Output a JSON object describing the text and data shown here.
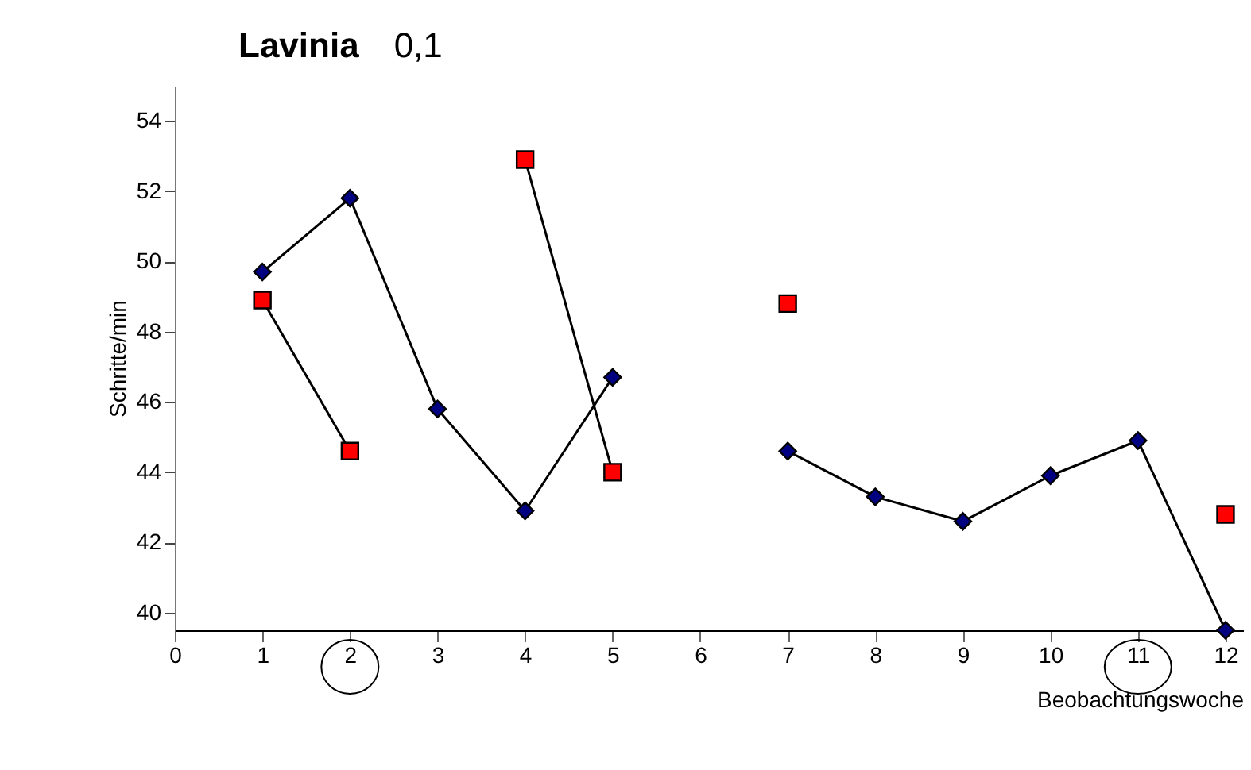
{
  "chart_data": {
    "type": "line",
    "title": "Lavinia",
    "subtitle": "0,1",
    "xlabel": "Beobachtungswoche",
    "ylabel": "Schritte/min",
    "x": [
      1,
      2,
      3,
      4,
      5,
      6,
      7,
      8,
      9,
      10,
      11,
      12
    ],
    "series": [
      {
        "color": "#000080",
        "marker": "diamond",
        "values": [
          49.7,
          51.8,
          45.8,
          42.9,
          46.7,
          null,
          44.6,
          43.3,
          42.6,
          43.9,
          44.9,
          39.5
        ]
      },
      {
        "color": "#ff0000",
        "marker": "square",
        "values": [
          48.9,
          44.6,
          null,
          52.9,
          44.0,
          null,
          48.8,
          null,
          null,
          null,
          null,
          42.8
        ]
      }
    ],
    "xlim": [
      0,
      12.2
    ],
    "xticks": [
      0,
      1,
      2,
      3,
      4,
      5,
      6,
      7,
      8,
      9,
      10,
      11,
      12
    ],
    "ylim": [
      39.5,
      55
    ],
    "yticks": [
      40,
      42,
      44,
      46,
      48,
      50,
      52,
      54
    ]
  }
}
